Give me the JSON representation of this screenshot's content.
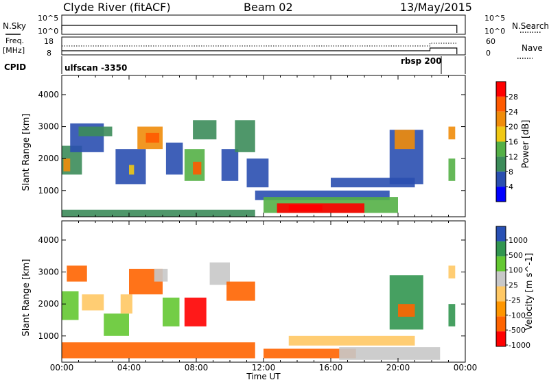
{
  "header": {
    "station": "Clyde River (fitACF)",
    "beam": "Beam 02",
    "date": "13/May/2015"
  },
  "status_panels": {
    "nsky_label": "N.Sky",
    "nsearch_label": "N.Search",
    "nsky_ticks": [
      "10^5",
      "10^0"
    ],
    "nsearch_ticks": [
      "10^5",
      "10^0"
    ],
    "freq_label_line1": "Freq.",
    "freq_label_line2": "[MHz]",
    "freq_ticks": [
      "18",
      "8"
    ],
    "nave_label": "Nave",
    "nave_ticks": [
      "60",
      "0"
    ],
    "cpid_label": "CPID",
    "cpid_segments": [
      {
        "name": "ulfscan -3350",
        "start_hour": 0.0,
        "end_hour": 21.9
      },
      {
        "name": "rbsp 200",
        "start_hour": 21.9,
        "end_hour": 23.5
      }
    ]
  },
  "colors": {
    "power_scale": [
      "#0000ff",
      "#2a4fb0",
      "#3c8c5a",
      "#54b046",
      "#f0c814",
      "#f08c0a",
      "#ff5a00",
      "#ff0000"
    ],
    "velocity_scale": [
      "#ff0000",
      "#ff6400",
      "#ff9600",
      "#ffc864",
      "#c8c8c8",
      "#64c832",
      "#329650",
      "#2850b4"
    ]
  },
  "chart_data": [
    {
      "type": "heatmap",
      "title": "",
      "xlabel": "",
      "ylabel": "Slant Range [km]",
      "x_tick_labels": [
        "00:00",
        "04:00",
        "08:00",
        "12:00",
        "16:00",
        "20:00",
        "00:00"
      ],
      "y_tick_labels": [
        "1000",
        "2000",
        "3000",
        "4000"
      ],
      "xlim_hours": [
        0,
        24
      ],
      "ylim_km": [
        180,
        4600
      ],
      "colorbar": {
        "label": "Power [dB]",
        "tick_labels": [
          "4",
          "8",
          "12",
          "16",
          "20",
          "24",
          "28"
        ],
        "range": [
          0,
          32
        ]
      },
      "regions": [
        {
          "t0": 0.0,
          "t1": 1.2,
          "r0": 1500,
          "r1": 2400,
          "value": 8
        },
        {
          "t0": 0.1,
          "t1": 0.5,
          "r0": 1600,
          "r1": 2000,
          "value": 20
        },
        {
          "t0": 0.5,
          "t1": 2.5,
          "r0": 2200,
          "r1": 3100,
          "value": 4
        },
        {
          "t0": 1.0,
          "t1": 3.0,
          "r0": 2700,
          "r1": 3000,
          "value": 9
        },
        {
          "t0": 3.2,
          "t1": 5.0,
          "r0": 1200,
          "r1": 2300,
          "value": 6
        },
        {
          "t0": 4.0,
          "t1": 4.3,
          "r0": 1500,
          "r1": 1800,
          "value": 16
        },
        {
          "t0": 4.5,
          "t1": 6.0,
          "r0": 2300,
          "r1": 3000,
          "value": 20
        },
        {
          "t0": 5.0,
          "t1": 5.8,
          "r0": 2500,
          "r1": 2800,
          "value": 26
        },
        {
          "t0": 6.2,
          "t1": 7.2,
          "r0": 1500,
          "r1": 2500,
          "value": 5
        },
        {
          "t0": 7.3,
          "t1": 8.5,
          "r0": 1300,
          "r1": 2300,
          "value": 14
        },
        {
          "t0": 7.8,
          "t1": 8.3,
          "r0": 1500,
          "r1": 1900,
          "value": 24
        },
        {
          "t0": 7.8,
          "t1": 9.2,
          "r0": 2600,
          "r1": 3200,
          "value": 8
        },
        {
          "t0": 9.5,
          "t1": 10.5,
          "r0": 1300,
          "r1": 2300,
          "value": 5
        },
        {
          "t0": 10.3,
          "t1": 11.5,
          "r0": 2200,
          "r1": 3200,
          "value": 10
        },
        {
          "t0": 11.0,
          "t1": 12.3,
          "r0": 1100,
          "r1": 2000,
          "value": 4
        },
        {
          "t0": 11.5,
          "t1": 19.5,
          "r0": 700,
          "r1": 1000,
          "value": 6
        },
        {
          "t0": 12.0,
          "t1": 20.0,
          "r0": 300,
          "r1": 800,
          "value": 12
        },
        {
          "t0": 12.8,
          "t1": 18.0,
          "r0": 300,
          "r1": 600,
          "value": 28
        },
        {
          "t0": 13.5,
          "t1": 15.5,
          "r0": 350,
          "r1": 550,
          "value": 30
        },
        {
          "t0": 16.0,
          "t1": 21.0,
          "r0": 1100,
          "r1": 1400,
          "value": 6
        },
        {
          "t0": 19.5,
          "t1": 21.5,
          "r0": 1200,
          "r1": 2900,
          "value": 7
        },
        {
          "t0": 19.8,
          "t1": 21.0,
          "r0": 2300,
          "r1": 2900,
          "value": 22
        },
        {
          "t0": 23.0,
          "t1": 23.4,
          "r0": 1300,
          "r1": 2000,
          "value": 14
        },
        {
          "t0": 23.0,
          "t1": 23.4,
          "r0": 2600,
          "r1": 3000,
          "value": 22
        },
        {
          "t0": 0.0,
          "t1": 11.5,
          "r0": 180,
          "r1": 400,
          "value": 8
        }
      ]
    },
    {
      "type": "heatmap",
      "title": "",
      "xlabel": "Time UT",
      "ylabel": "Slant Range [km]",
      "x_tick_labels": [
        "00:00",
        "04:00",
        "08:00",
        "12:00",
        "16:00",
        "20:00",
        "00:00"
      ],
      "y_tick_labels": [
        "1000",
        "2000",
        "3000",
        "4000"
      ],
      "xlim_hours": [
        0,
        24
      ],
      "ylim_km": [
        180,
        4600
      ],
      "colorbar": {
        "label": "Velocity [m s^-1]",
        "tick_labels": [
          "-1000",
          "-500",
          "-100",
          "-25",
          "25",
          "100",
          "500",
          "1000"
        ],
        "range": [
          -1000,
          1000
        ]
      },
      "regions": [
        {
          "t0": 0.0,
          "t1": 1.0,
          "r0": 1500,
          "r1": 2400,
          "value": 300
        },
        {
          "t0": 0.3,
          "t1": 1.5,
          "r0": 2700,
          "r1": 3200,
          "value": -300
        },
        {
          "t0": 1.2,
          "t1": 2.5,
          "r0": 1800,
          "r1": 2300,
          "value": 0
        },
        {
          "t0": 2.5,
          "t1": 4.0,
          "r0": 1000,
          "r1": 1700,
          "value": 200
        },
        {
          "t0": 3.5,
          "t1": 4.2,
          "r0": 1700,
          "r1": 2300,
          "value": 0
        },
        {
          "t0": 4.0,
          "t1": 6.0,
          "r0": 2300,
          "r1": 3100,
          "value": -300
        },
        {
          "t0": 5.5,
          "t1": 6.3,
          "r0": 2700,
          "r1": 3100,
          "value": 60
        },
        {
          "t0": 6.0,
          "t1": 7.0,
          "r0": 1300,
          "r1": 2200,
          "value": 300
        },
        {
          "t0": 7.3,
          "t1": 8.6,
          "r0": 1300,
          "r1": 2200,
          "value": -900
        },
        {
          "t0": 8.8,
          "t1": 10.0,
          "r0": 2600,
          "r1": 3300,
          "value": 80
        },
        {
          "t0": 9.8,
          "t1": 11.5,
          "r0": 2100,
          "r1": 2700,
          "value": -200
        },
        {
          "t0": 0.0,
          "t1": 11.5,
          "r0": 300,
          "r1": 800,
          "value": -200
        },
        {
          "t0": 12.0,
          "t1": 17.5,
          "r0": 300,
          "r1": 600,
          "value": -300
        },
        {
          "t0": 13.5,
          "t1": 21.0,
          "r0": 700,
          "r1": 1000,
          "value": 0
        },
        {
          "t0": 16.5,
          "t1": 22.5,
          "r0": 250,
          "r1": 650,
          "value": 80
        },
        {
          "t0": 19.5,
          "t1": 21.5,
          "r0": 1200,
          "r1": 2900,
          "value": 700
        },
        {
          "t0": 20.0,
          "t1": 21.0,
          "r0": 1600,
          "r1": 2000,
          "value": -200
        },
        {
          "t0": 23.0,
          "t1": 23.4,
          "r0": 1300,
          "r1": 2000,
          "value": 900
        },
        {
          "t0": 23.0,
          "t1": 23.4,
          "r0": 2800,
          "r1": 3200,
          "value": 0
        }
      ]
    }
  ]
}
